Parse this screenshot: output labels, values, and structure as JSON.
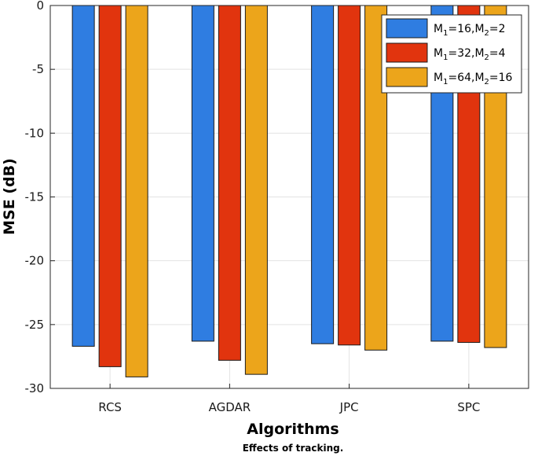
{
  "chart_data": {
    "type": "bar",
    "title": "",
    "caption": "Effects of tracking.",
    "xlabel": "Algorithms",
    "ylabel": "MSE (dB)",
    "ylim": [
      -30,
      0
    ],
    "yticks": [
      0,
      -5,
      -10,
      -15,
      -20,
      -25,
      -30
    ],
    "ytick_labels": [
      "0",
      "-5",
      "-10",
      "-15",
      "-20",
      "-25",
      "-30"
    ],
    "categories": [
      "RCS",
      "AGDAR",
      "JPC",
      "SPC"
    ],
    "series": [
      {
        "name": "M1=16,M2=2",
        "m1": "16",
        "m2": "2",
        "values": [
          -26.7,
          -26.3,
          -26.5,
          -26.3
        ]
      },
      {
        "name": "M1=32,M2=4",
        "m1": "32",
        "m2": "4",
        "values": [
          -28.3,
          -27.8,
          -26.6,
          -26.4
        ]
      },
      {
        "name": "M1=64,M2=16",
        "m1": "64",
        "m2": "16",
        "values": [
          -29.1,
          -28.9,
          -27.0,
          -26.8
        ]
      }
    ],
    "colors": [
      "#2f7de1",
      "#e1340e",
      "#eca51b"
    ],
    "grid": true,
    "legend_position": "top-right"
  }
}
